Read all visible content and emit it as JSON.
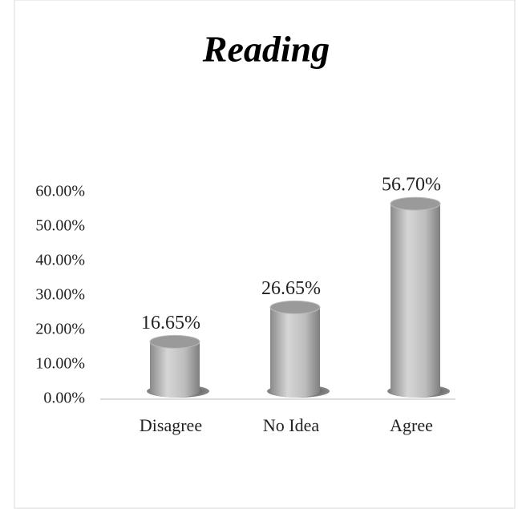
{
  "chart_data": {
    "type": "bar",
    "title": "Reading",
    "categories": [
      "Disagree",
      "No Idea",
      "Agree"
    ],
    "values": [
      16.65,
      26.65,
      56.7
    ],
    "value_labels": [
      "16.65%",
      "26.65%",
      "56.70%"
    ],
    "color": "#b0b0b0",
    "ylim": [
      0,
      60
    ],
    "yticks": [
      {
        "value": 0,
        "label": "0.00%"
      },
      {
        "value": 10,
        "label": "10.00%"
      },
      {
        "value": 20,
        "label": "20.00%"
      },
      {
        "value": 30,
        "label": "30.00%"
      },
      {
        "value": 40,
        "label": "40.00%"
      },
      {
        "value": 50,
        "label": "50.00%"
      },
      {
        "value": 60,
        "label": "60.00%"
      }
    ],
    "grid": false
  }
}
